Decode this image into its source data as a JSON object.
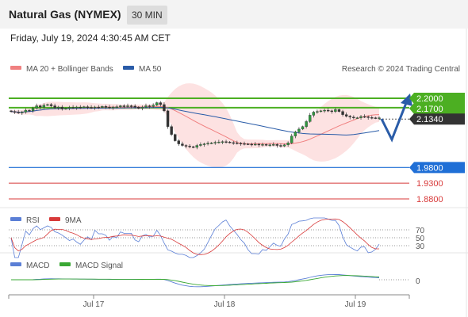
{
  "header": {
    "instrument": "Natural Gas (NYMEX)",
    "timeframe": "30 MIN",
    "datetime": "Friday, July 19, 2024 4:30:45 AM CET"
  },
  "chart_data": [
    {
      "type": "candlestick",
      "legend": [
        {
          "name": "MA 20 + Bollinger Bands",
          "color": "#f08080"
        },
        {
          "name": "MA 50",
          "color": "#2a5ca8"
        }
      ],
      "credit": "Research © 2024 Trading Central",
      "current_price": {
        "label": "2.1340",
        "value": 2.134,
        "color": "#333333"
      },
      "resistance_levels": [
        {
          "label": "2.2000",
          "value": 2.2,
          "color": "#4caf22"
        },
        {
          "label": "2.1700",
          "value": 2.17,
          "color": "#4caf22"
        }
      ],
      "pivot": {
        "label": "1.9800",
        "value": 1.98,
        "color": "#1f6fd6"
      },
      "support_levels": [
        {
          "label": "1.9300",
          "value": 1.93,
          "color": "#d83a3a"
        },
        {
          "label": "1.8800",
          "value": 1.88,
          "color": "#d83a3a"
        }
      ],
      "projection": "down then up (zigzag to 2.2000)",
      "x_ticks": [
        "Jul 17",
        "Jul 18",
        "Jul 19"
      ],
      "closes": [
        2.158,
        2.156,
        2.154,
        2.156,
        2.162,
        2.16,
        2.168,
        2.176,
        2.172,
        2.178,
        2.18,
        2.176,
        2.17,
        2.172,
        2.166,
        2.168,
        2.171,
        2.17,
        2.172,
        2.171,
        2.173,
        2.171,
        2.17,
        2.172,
        2.171,
        2.174,
        2.172,
        2.17,
        2.172,
        2.173,
        2.176,
        2.174,
        2.176,
        2.175,
        2.172,
        2.168,
        2.172,
        2.176,
        2.174,
        2.178,
        2.186,
        2.18,
        2.16,
        2.11,
        2.085,
        2.065,
        2.055,
        2.05,
        2.048,
        2.046,
        2.044,
        2.05,
        2.053,
        2.055,
        2.057,
        2.058,
        2.06,
        2.061,
        2.062,
        2.061,
        2.059,
        2.058,
        2.057,
        2.056,
        2.055,
        2.054,
        2.053,
        2.054,
        2.052,
        2.053,
        2.051,
        2.052,
        2.053,
        2.05,
        2.048,
        2.052,
        2.058,
        2.08,
        2.093,
        2.102,
        2.11,
        2.126,
        2.146,
        2.156,
        2.158,
        2.16,
        2.162,
        2.16,
        2.158,
        2.164,
        2.158,
        2.148,
        2.143,
        2.14,
        2.138,
        2.138,
        2.142,
        2.141,
        2.139,
        2.138,
        2.137,
        2.138
      ],
      "ylim": [
        1.86,
        2.235
      ]
    },
    {
      "type": "line",
      "legend": [
        {
          "name": "RSI",
          "color": "#5b7fd6"
        },
        {
          "name": "9MA",
          "color": "#d83a3a"
        }
      ],
      "y_ticks": [
        "70",
        "50",
        "30"
      ],
      "ylim": [
        0,
        100
      ]
    },
    {
      "type": "line",
      "legend": [
        {
          "name": "MACD",
          "color": "#5b7fd6"
        },
        {
          "name": "MACD Signal",
          "color": "#3aa834"
        }
      ],
      "y_ticks": [
        "0"
      ]
    }
  ]
}
